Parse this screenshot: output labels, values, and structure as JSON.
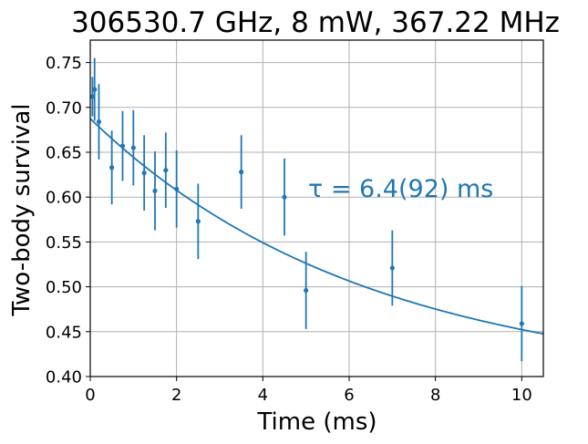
{
  "chart_data": {
    "type": "scatter",
    "title": "306530.7 GHz, 8 mW, 367.22 MHz",
    "xlabel": "Time (ms)",
    "ylabel": "Two-body survival",
    "xlim": [
      0,
      10.5
    ],
    "ylim": [
      0.4,
      0.775
    ],
    "xticks": [
      0,
      2,
      4,
      6,
      8,
      10
    ],
    "yticks": [
      0.4,
      0.45,
      0.5,
      0.55,
      0.6,
      0.65,
      0.7,
      0.75
    ],
    "ytick_labels": [
      "0.40",
      "0.45",
      "0.50",
      "0.55",
      "0.60",
      "0.65",
      "0.70",
      "0.75"
    ],
    "grid": true,
    "color": "#1f77b4",
    "series": [
      {
        "x": [
          0.05,
          0.1,
          0.2,
          0.5,
          0.75,
          1.0,
          1.25,
          1.5,
          1.75,
          2.0,
          2.5,
          3.5,
          4.5,
          5.0,
          7.0,
          10.0
        ],
        "y": [
          0.712,
          0.72,
          0.684,
          0.633,
          0.657,
          0.655,
          0.627,
          0.607,
          0.63,
          0.609,
          0.573,
          0.628,
          0.6,
          0.496,
          0.521,
          0.459
        ],
        "yerr": [
          0.022,
          0.035,
          0.042,
          0.041,
          0.039,
          0.042,
          0.042,
          0.044,
          0.042,
          0.043,
          0.042,
          0.041,
          0.043,
          0.043,
          0.042,
          0.042
        ]
      }
    ],
    "fit": {
      "type": "exponential",
      "A": 0.2975,
      "tau": 6.4,
      "C": 0.39
    },
    "annotation": "τ = 6.4(92) ms"
  }
}
